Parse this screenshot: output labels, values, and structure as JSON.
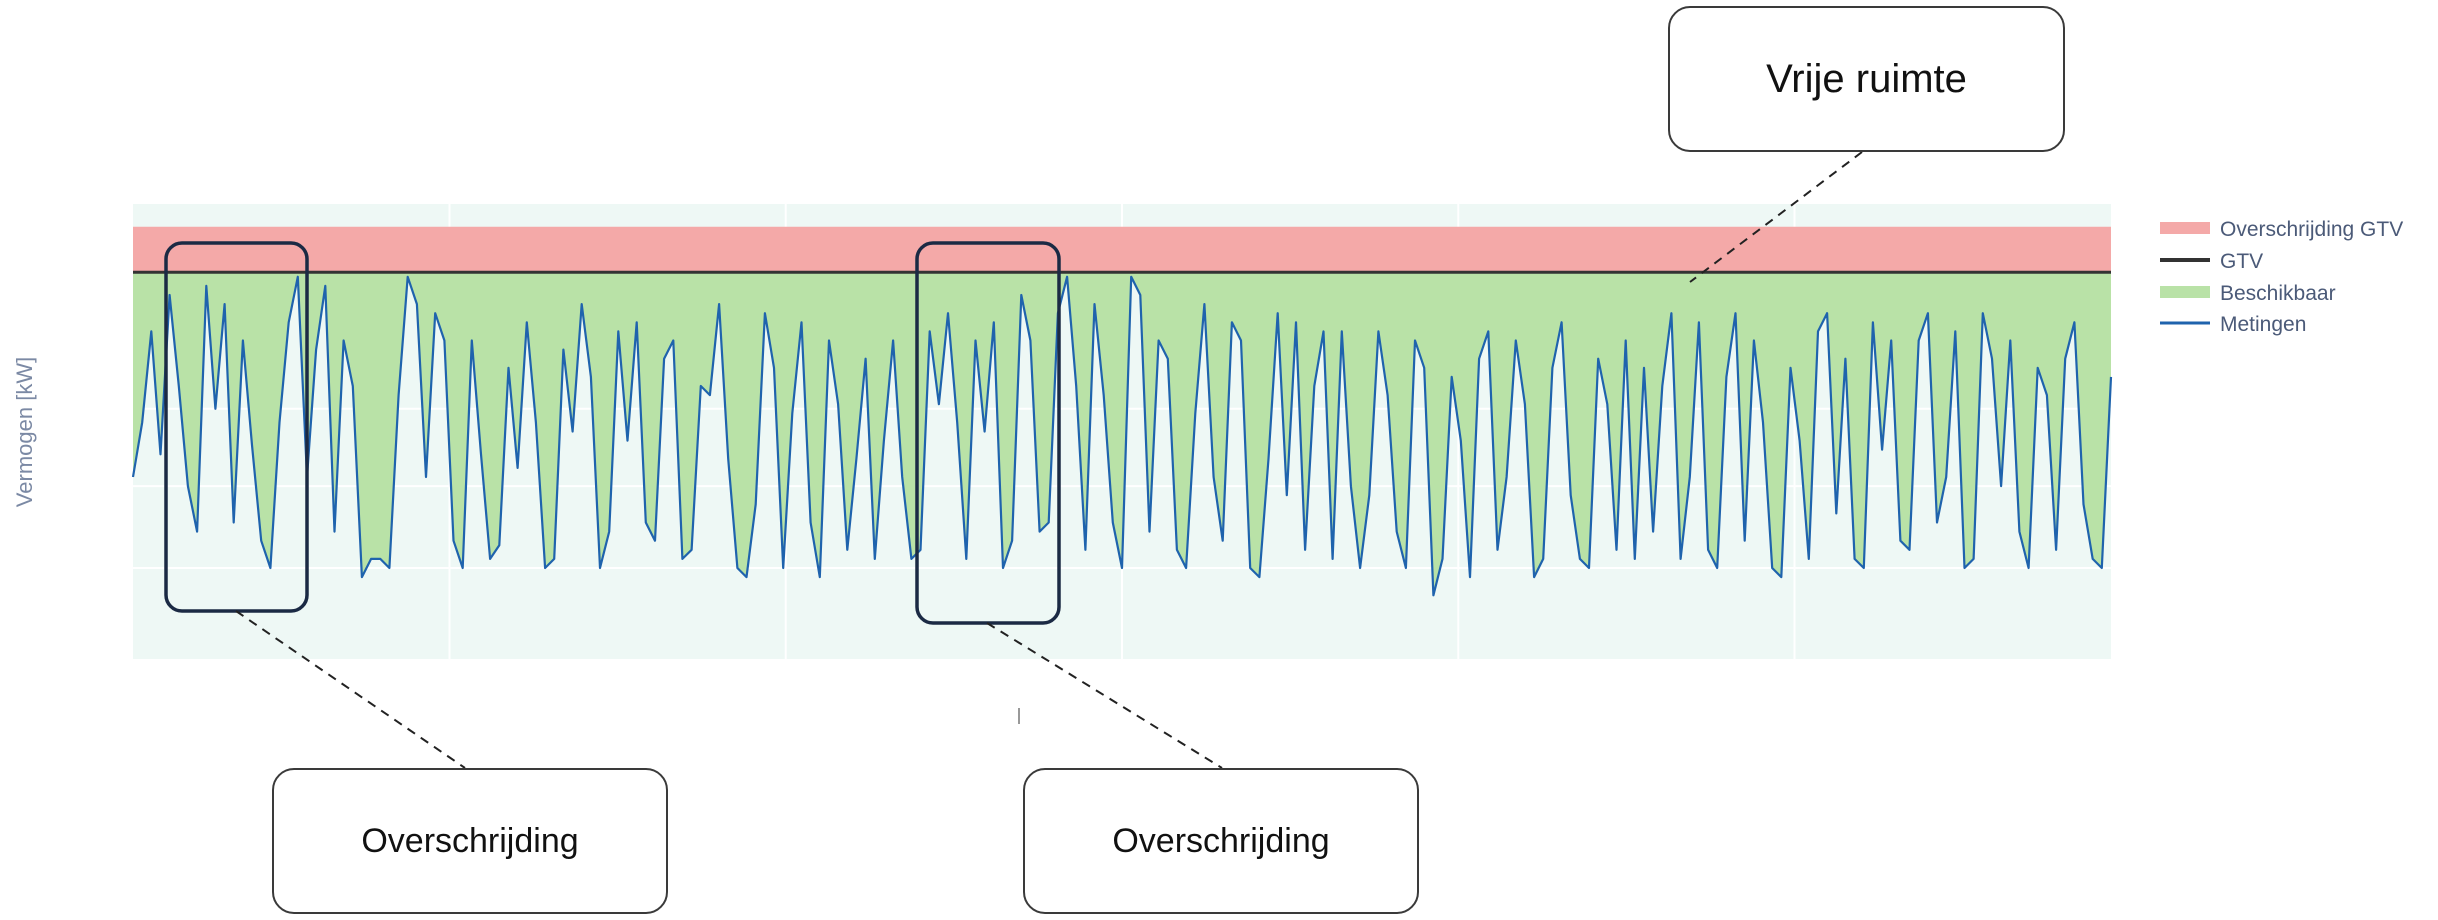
{
  "chart_data": {
    "type": "area",
    "title": "",
    "xlabel": "",
    "ylabel": "Vermogen [kW]",
    "legend_position": "right",
    "grid": true,
    "colors": {
      "overschrijding": "#f4a9a8",
      "gtv": "#333333",
      "beschikbaar": "#b9e2a7",
      "metingen": "#1f63ad",
      "background": "#eef8f5"
    },
    "ylim": [
      0,
      100
    ],
    "gtv_value": 85,
    "overschrijding_upper": 95,
    "series": [
      {
        "name": "Overschrijding GTV",
        "kind": "band"
      },
      {
        "name": "GTV",
        "kind": "line"
      },
      {
        "name": "Beschikbaar",
        "kind": "area"
      },
      {
        "name": "Metingen",
        "kind": "line",
        "values": [
          40,
          52,
          72,
          45,
          80,
          60,
          38,
          28,
          82,
          55,
          78,
          30,
          70,
          47,
          26,
          20,
          52,
          74,
          84,
          40,
          68,
          82,
          28,
          70,
          60,
          18,
          22,
          22,
          20,
          58,
          84,
          78,
          40,
          76,
          70,
          26,
          20,
          70,
          45,
          22,
          25,
          64,
          42,
          74,
          52,
          20,
          22,
          68,
          50,
          78,
          62,
          20,
          28,
          72,
          48,
          74,
          30,
          26,
          66,
          70,
          22,
          24,
          60,
          58,
          78,
          44,
          20,
          18,
          34,
          76,
          64,
          20,
          54,
          74,
          30,
          18,
          70,
          56,
          24,
          44,
          66,
          22,
          48,
          70,
          40,
          22,
          24,
          72,
          56,
          76,
          52,
          22,
          70,
          50,
          74,
          20,
          26,
          80,
          70,
          28,
          30,
          76,
          84,
          60,
          24,
          78,
          58,
          30,
          20,
          84,
          80,
          28,
          70,
          66,
          24,
          20,
          54,
          78,
          40,
          26,
          74,
          70,
          20,
          18,
          44,
          76,
          36,
          74,
          24,
          60,
          72,
          22,
          72,
          38,
          20,
          36,
          72,
          58,
          28,
          20,
          70,
          64,
          14,
          22,
          62,
          48,
          18,
          66,
          72,
          24,
          40,
          70,
          56,
          18,
          22,
          64,
          74,
          36,
          22,
          20,
          66,
          56,
          24,
          70,
          22,
          64,
          28,
          60,
          76,
          22,
          40,
          74,
          24,
          20,
          62,
          76,
          26,
          70,
          52,
          20,
          18,
          64,
          48,
          22,
          72,
          76,
          32,
          66,
          22,
          20,
          74,
          46,
          70,
          26,
          24,
          70,
          76,
          30,
          40,
          72,
          20,
          22,
          76,
          66,
          38,
          70,
          28,
          20,
          64,
          58,
          24,
          66,
          74,
          34,
          22,
          20,
          62
        ]
      }
    ],
    "annotations": [
      "Vrije ruimte",
      "Overschrijding",
      "Overschrijding"
    ]
  }
}
